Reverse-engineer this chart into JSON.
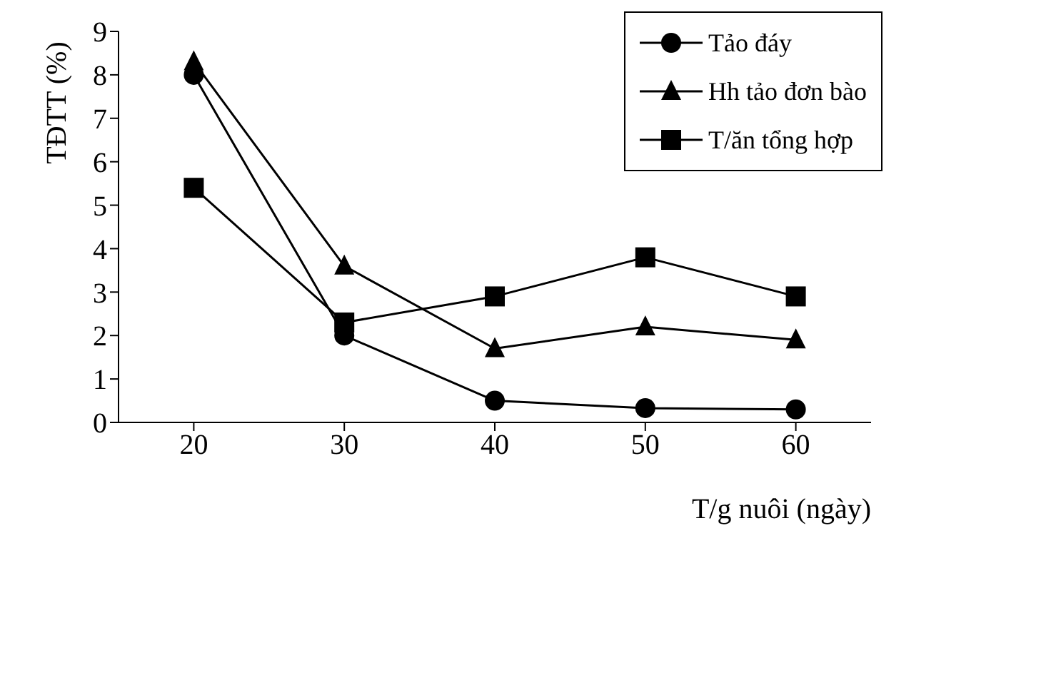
{
  "chart_data": {
    "type": "line",
    "xlabel": "T/g nuôi (ngày)",
    "ylabel": "TĐTT (%)",
    "x": [
      20,
      30,
      40,
      50,
      60
    ],
    "xlim": [
      15,
      65
    ],
    "xticks": [
      20,
      30,
      40,
      50,
      60
    ],
    "ylim": [
      0,
      9
    ],
    "yticks": [
      0,
      1,
      2,
      3,
      4,
      5,
      6,
      7,
      8,
      9
    ],
    "grid": false,
    "legend": "top right",
    "line_style": "solid",
    "series": [
      {
        "name": "Tảo đáy",
        "color": "#000000",
        "marker": "circle",
        "values": [
          8.0,
          2.0,
          0.5,
          0.33,
          0.3
        ]
      },
      {
        "name": "Hh tảo đơn bào",
        "color": "#000000",
        "marker": "triangle",
        "values": [
          8.3,
          3.6,
          1.7,
          2.2,
          1.9
        ]
      },
      {
        "name": "T/ăn tổng hợp",
        "color": "#000000",
        "marker": "square",
        "values": [
          5.4,
          2.3,
          2.9,
          3.8,
          2.9
        ]
      }
    ]
  }
}
